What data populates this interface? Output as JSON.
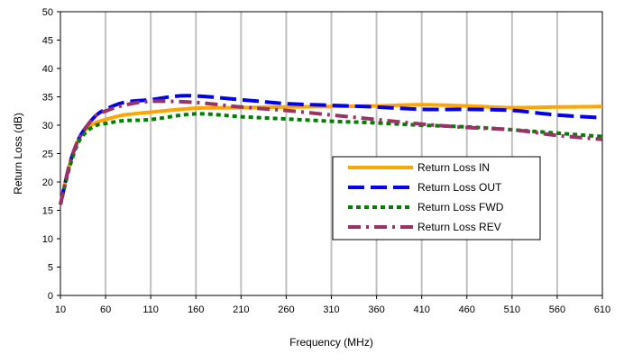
{
  "chart_data": {
    "type": "line",
    "title": "",
    "xlabel": "Frequency (MHz)",
    "ylabel": "Return Loss (dB)",
    "xlim": [
      10,
      610
    ],
    "ylim": [
      0,
      50
    ],
    "x_ticks": [
      10,
      60,
      110,
      160,
      210,
      260,
      310,
      360,
      410,
      460,
      510,
      560,
      610
    ],
    "y_ticks": [
      0,
      5,
      10,
      15,
      20,
      25,
      30,
      35,
      40,
      45,
      50
    ],
    "grid": "vertical",
    "legend_position": "center-right",
    "series": [
      {
        "name": "Return Loss IN",
        "color": "#FFA500",
        "dash": "solid",
        "x": [
          10,
          20,
          30,
          40,
          50,
          60,
          80,
          110,
          160,
          210,
          260,
          310,
          360,
          410,
          460,
          510,
          560,
          610
        ],
        "y": [
          16,
          23,
          27.5,
          29.5,
          30.5,
          31,
          31.8,
          32.3,
          33,
          33.1,
          33.2,
          33.3,
          33.4,
          33.6,
          33.4,
          33.1,
          33.2,
          33.3
        ]
      },
      {
        "name": "Return Loss OUT",
        "color": "#0000EE",
        "dash": "long-dash",
        "x": [
          10,
          20,
          30,
          40,
          50,
          60,
          80,
          110,
          150,
          210,
          260,
          310,
          360,
          410,
          460,
          510,
          560,
          610
        ],
        "y": [
          16,
          23,
          27.5,
          30,
          31.8,
          32.8,
          34,
          34.5,
          35.2,
          34.5,
          33.8,
          33.5,
          33.2,
          32.8,
          32.8,
          32.6,
          31.8,
          31.3
        ]
      },
      {
        "name": "Return Loss FWD",
        "color": "#008000",
        "dash": "short-dash",
        "x": [
          10,
          20,
          30,
          40,
          50,
          60,
          80,
          110,
          160,
          210,
          260,
          310,
          360,
          410,
          460,
          510,
          560,
          610
        ],
        "y": [
          16,
          22.5,
          27,
          29,
          30,
          30.3,
          30.8,
          31,
          32,
          31.5,
          31.1,
          30.7,
          30.4,
          30,
          29.7,
          29.2,
          28.6,
          28
        ]
      },
      {
        "name": "Return Loss REV",
        "color": "#993366",
        "dash": "dash-dot",
        "x": [
          10,
          20,
          30,
          40,
          50,
          60,
          80,
          110,
          160,
          210,
          260,
          310,
          360,
          410,
          460,
          510,
          560,
          610
        ],
        "y": [
          16,
          23,
          27.5,
          30,
          31.8,
          32.5,
          33.5,
          34.2,
          34,
          33.2,
          32.6,
          31.8,
          31,
          30.2,
          29.6,
          29.2,
          28.2,
          27.5
        ]
      }
    ]
  }
}
